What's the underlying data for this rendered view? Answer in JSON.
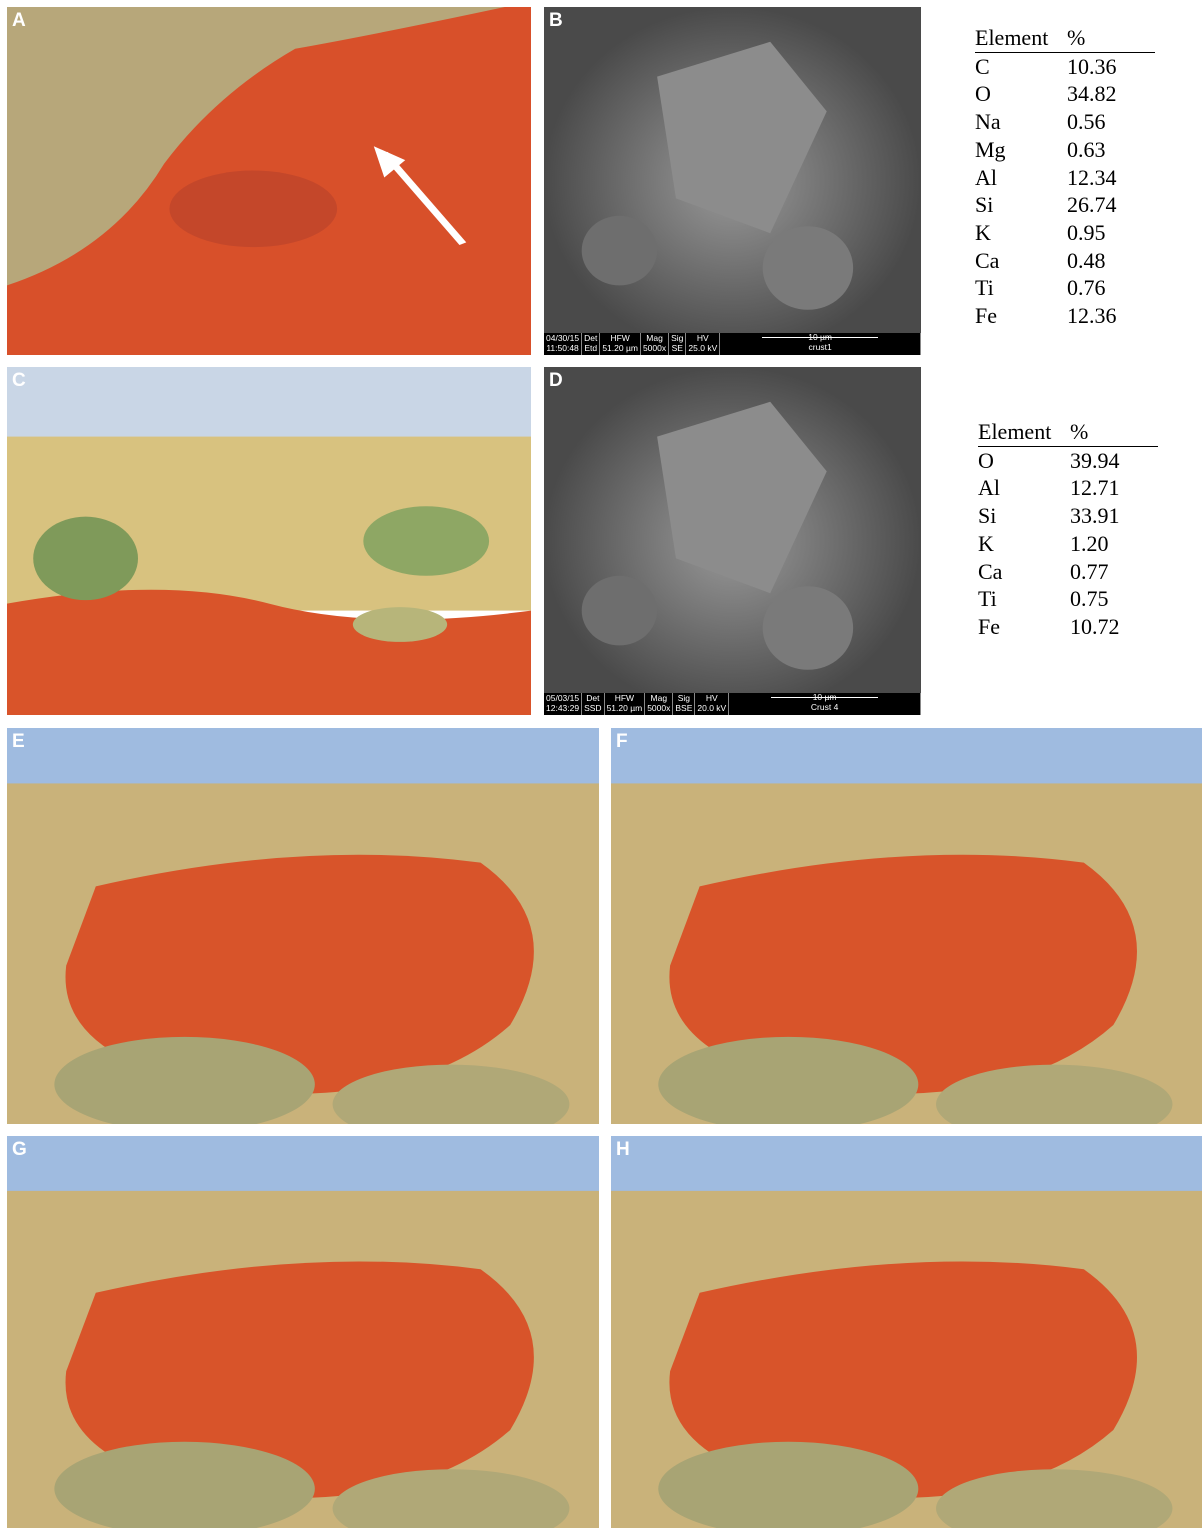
{
  "panels": [
    {
      "label": "A"
    },
    {
      "label": "B"
    },
    {
      "label": "C"
    },
    {
      "label": "D"
    },
    {
      "label": "E"
    },
    {
      "label": "F"
    },
    {
      "label": "G"
    },
    {
      "label": "H"
    }
  ],
  "sem_bars": [
    {
      "date": "04/30/15",
      "time": "11:50:48",
      "fields": [
        {
          "name": "Det",
          "value": "Etd"
        },
        {
          "name": "HFW",
          "value": "51.20 µm"
        },
        {
          "name": "Mag",
          "value": "5000x"
        },
        {
          "name": "Sig",
          "value": "SE"
        },
        {
          "name": "HV",
          "value": "25.0 kV"
        }
      ],
      "scale": "10 µm",
      "sample": "crust1"
    },
    {
      "date": "05/03/15",
      "time": "12:43:29",
      "fields": [
        {
          "name": "Det",
          "value": "SSD"
        },
        {
          "name": "HFW",
          "value": "51.20 µm"
        },
        {
          "name": "Mag",
          "value": "5000x"
        },
        {
          "name": "Sig",
          "value": "BSE"
        },
        {
          "name": "HV",
          "value": "20.0 kV"
        }
      ],
      "scale": "10 µm",
      "sample": "Crust 4"
    }
  ],
  "tables": [
    {
      "header": [
        "Element",
        "%"
      ],
      "rows": [
        [
          "C",
          "10.36"
        ],
        [
          "O",
          "34.82"
        ],
        [
          "Na",
          "0.56"
        ],
        [
          "Mg",
          "0.63"
        ],
        [
          "Al",
          "12.34"
        ],
        [
          "Si",
          "26.74"
        ],
        [
          "K",
          "0.95"
        ],
        [
          "Ca",
          "0.48"
        ],
        [
          "Ti",
          "0.76"
        ],
        [
          "Fe",
          "12.36"
        ]
      ]
    },
    {
      "header": [
        "Element",
        "%"
      ],
      "rows": [
        [
          "O",
          "39.94"
        ],
        [
          "Al",
          "12.71"
        ],
        [
          "Si",
          "33.91"
        ],
        [
          "K",
          "1.20"
        ],
        [
          "Ca",
          "0.77"
        ],
        [
          "Ti",
          "0.75"
        ],
        [
          "Fe",
          "10.72"
        ]
      ]
    }
  ]
}
